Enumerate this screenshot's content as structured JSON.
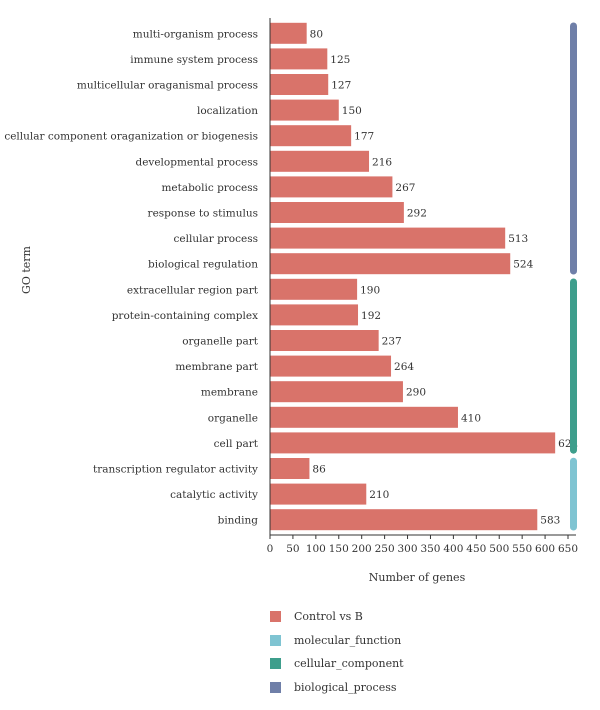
{
  "chart_data": {
    "type": "bar",
    "orientation": "horizontal",
    "xlabel": "Number of genes",
    "ylabel": "GO term",
    "xlim": [
      0,
      650
    ],
    "xticks": [
      "0",
      "50",
      "100",
      "150",
      "200",
      "250",
      "300",
      "350",
      "400",
      "450",
      "500",
      "550",
      "600",
      "650"
    ],
    "categories": [
      "multi-organism process",
      "immune system process",
      "multicellular oraganismal process",
      "localization",
      "cellular component oraganization or biogenesis",
      "developmental process",
      "metabolic process",
      "response to stimulus",
      "cellular process",
      "biological regulation",
      "extracellular region part",
      "protein-containing complex",
      "organelle part",
      "membrane part",
      "membrane",
      "organelle",
      "cell part",
      "transcription regulator activity",
      "catalytic activity",
      "binding"
    ],
    "series": [
      {
        "name": "Control vs B",
        "values": [
          80,
          125,
          127,
          150,
          177,
          216,
          267,
          292,
          513,
          524,
          190,
          192,
          237,
          264,
          290,
          410,
          622,
          86,
          210,
          583
        ]
      }
    ],
    "groups": [
      {
        "name": "biological_process",
        "start": 0,
        "end": 9
      },
      {
        "name": "cellular_component",
        "start": 10,
        "end": 16
      },
      {
        "name": "molecular_function",
        "start": 17,
        "end": 19
      }
    ],
    "grid": false,
    "legend_position": "bottom"
  },
  "colors": {
    "bar": "#d9736a",
    "molecular_function": "#7fc4d2",
    "cellular_component": "#3e9e8c",
    "biological_process": "#6f7fa8",
    "axis": "#333333"
  },
  "legend": [
    {
      "label": "Control vs B",
      "color": "#d9736a"
    },
    {
      "label": "molecular_function",
      "color": "#7fc4d2"
    },
    {
      "label": "cellular_component",
      "color": "#3e9e8c"
    },
    {
      "label": "biological_process",
      "color": "#6f7fa8"
    }
  ]
}
